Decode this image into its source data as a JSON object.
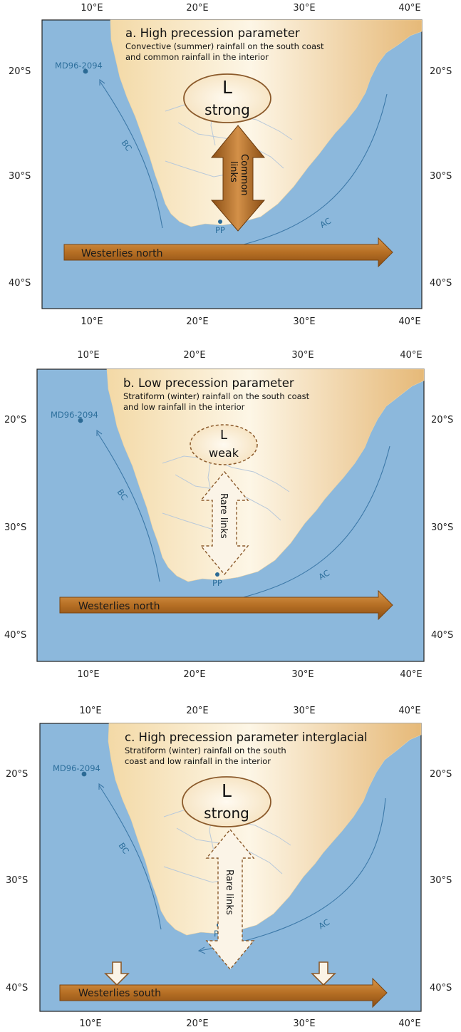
{
  "lon_ticks": [
    "10°E",
    "20°E",
    "30°E",
    "40°E"
  ],
  "lat_ticks": [
    "20°S",
    "30°S",
    "40°S"
  ],
  "panels": [
    {
      "title": "a. High precession parameter",
      "subtitle_1": "Convective (summer) rainfall on the south coast",
      "subtitle_2": "and common rainfall in the interior",
      "core_site": "MD96-2094",
      "site": "PP",
      "current_west": "BC",
      "current_east": "AC",
      "low_symbol": "L",
      "low_strength": "strong",
      "links_line1": "Common",
      "links_line2": "links",
      "westerlies": "Westerlies north"
    },
    {
      "title": "b. Low precession parameter",
      "subtitle_1": "Stratiform (winter) rainfall on the south coast",
      "subtitle_2": "and low rainfall in the interior",
      "core_site": "MD96-2094",
      "site": "PP",
      "current_west": "BC",
      "current_east": "AC",
      "low_symbol": "L",
      "low_strength": "weak",
      "links_label": "Rare links",
      "westerlies": "Westerlies north"
    },
    {
      "title": "c. High precession parameter interglacial",
      "subtitle_1": "Stratiform (winter) rainfall on the south",
      "subtitle_2": "coast and low rainfall in the interior",
      "core_site": "MD96-2094",
      "site": "PP",
      "current_west": "BC",
      "current_east": "AC",
      "low_symbol": "L",
      "low_strength": "strong",
      "links_label": "Rare links",
      "westerlies": "Westerlies south"
    }
  ],
  "colors": {
    "ocean": "#8cb8dc",
    "land_light": "#fdf3dc",
    "land_dark": "#e3b876",
    "arrow_brown": "#b46e22",
    "current_blue": "#3d79a8",
    "ellipse_fill": "#fbefd6",
    "ellipse_stroke": "#8b5a2b"
  }
}
